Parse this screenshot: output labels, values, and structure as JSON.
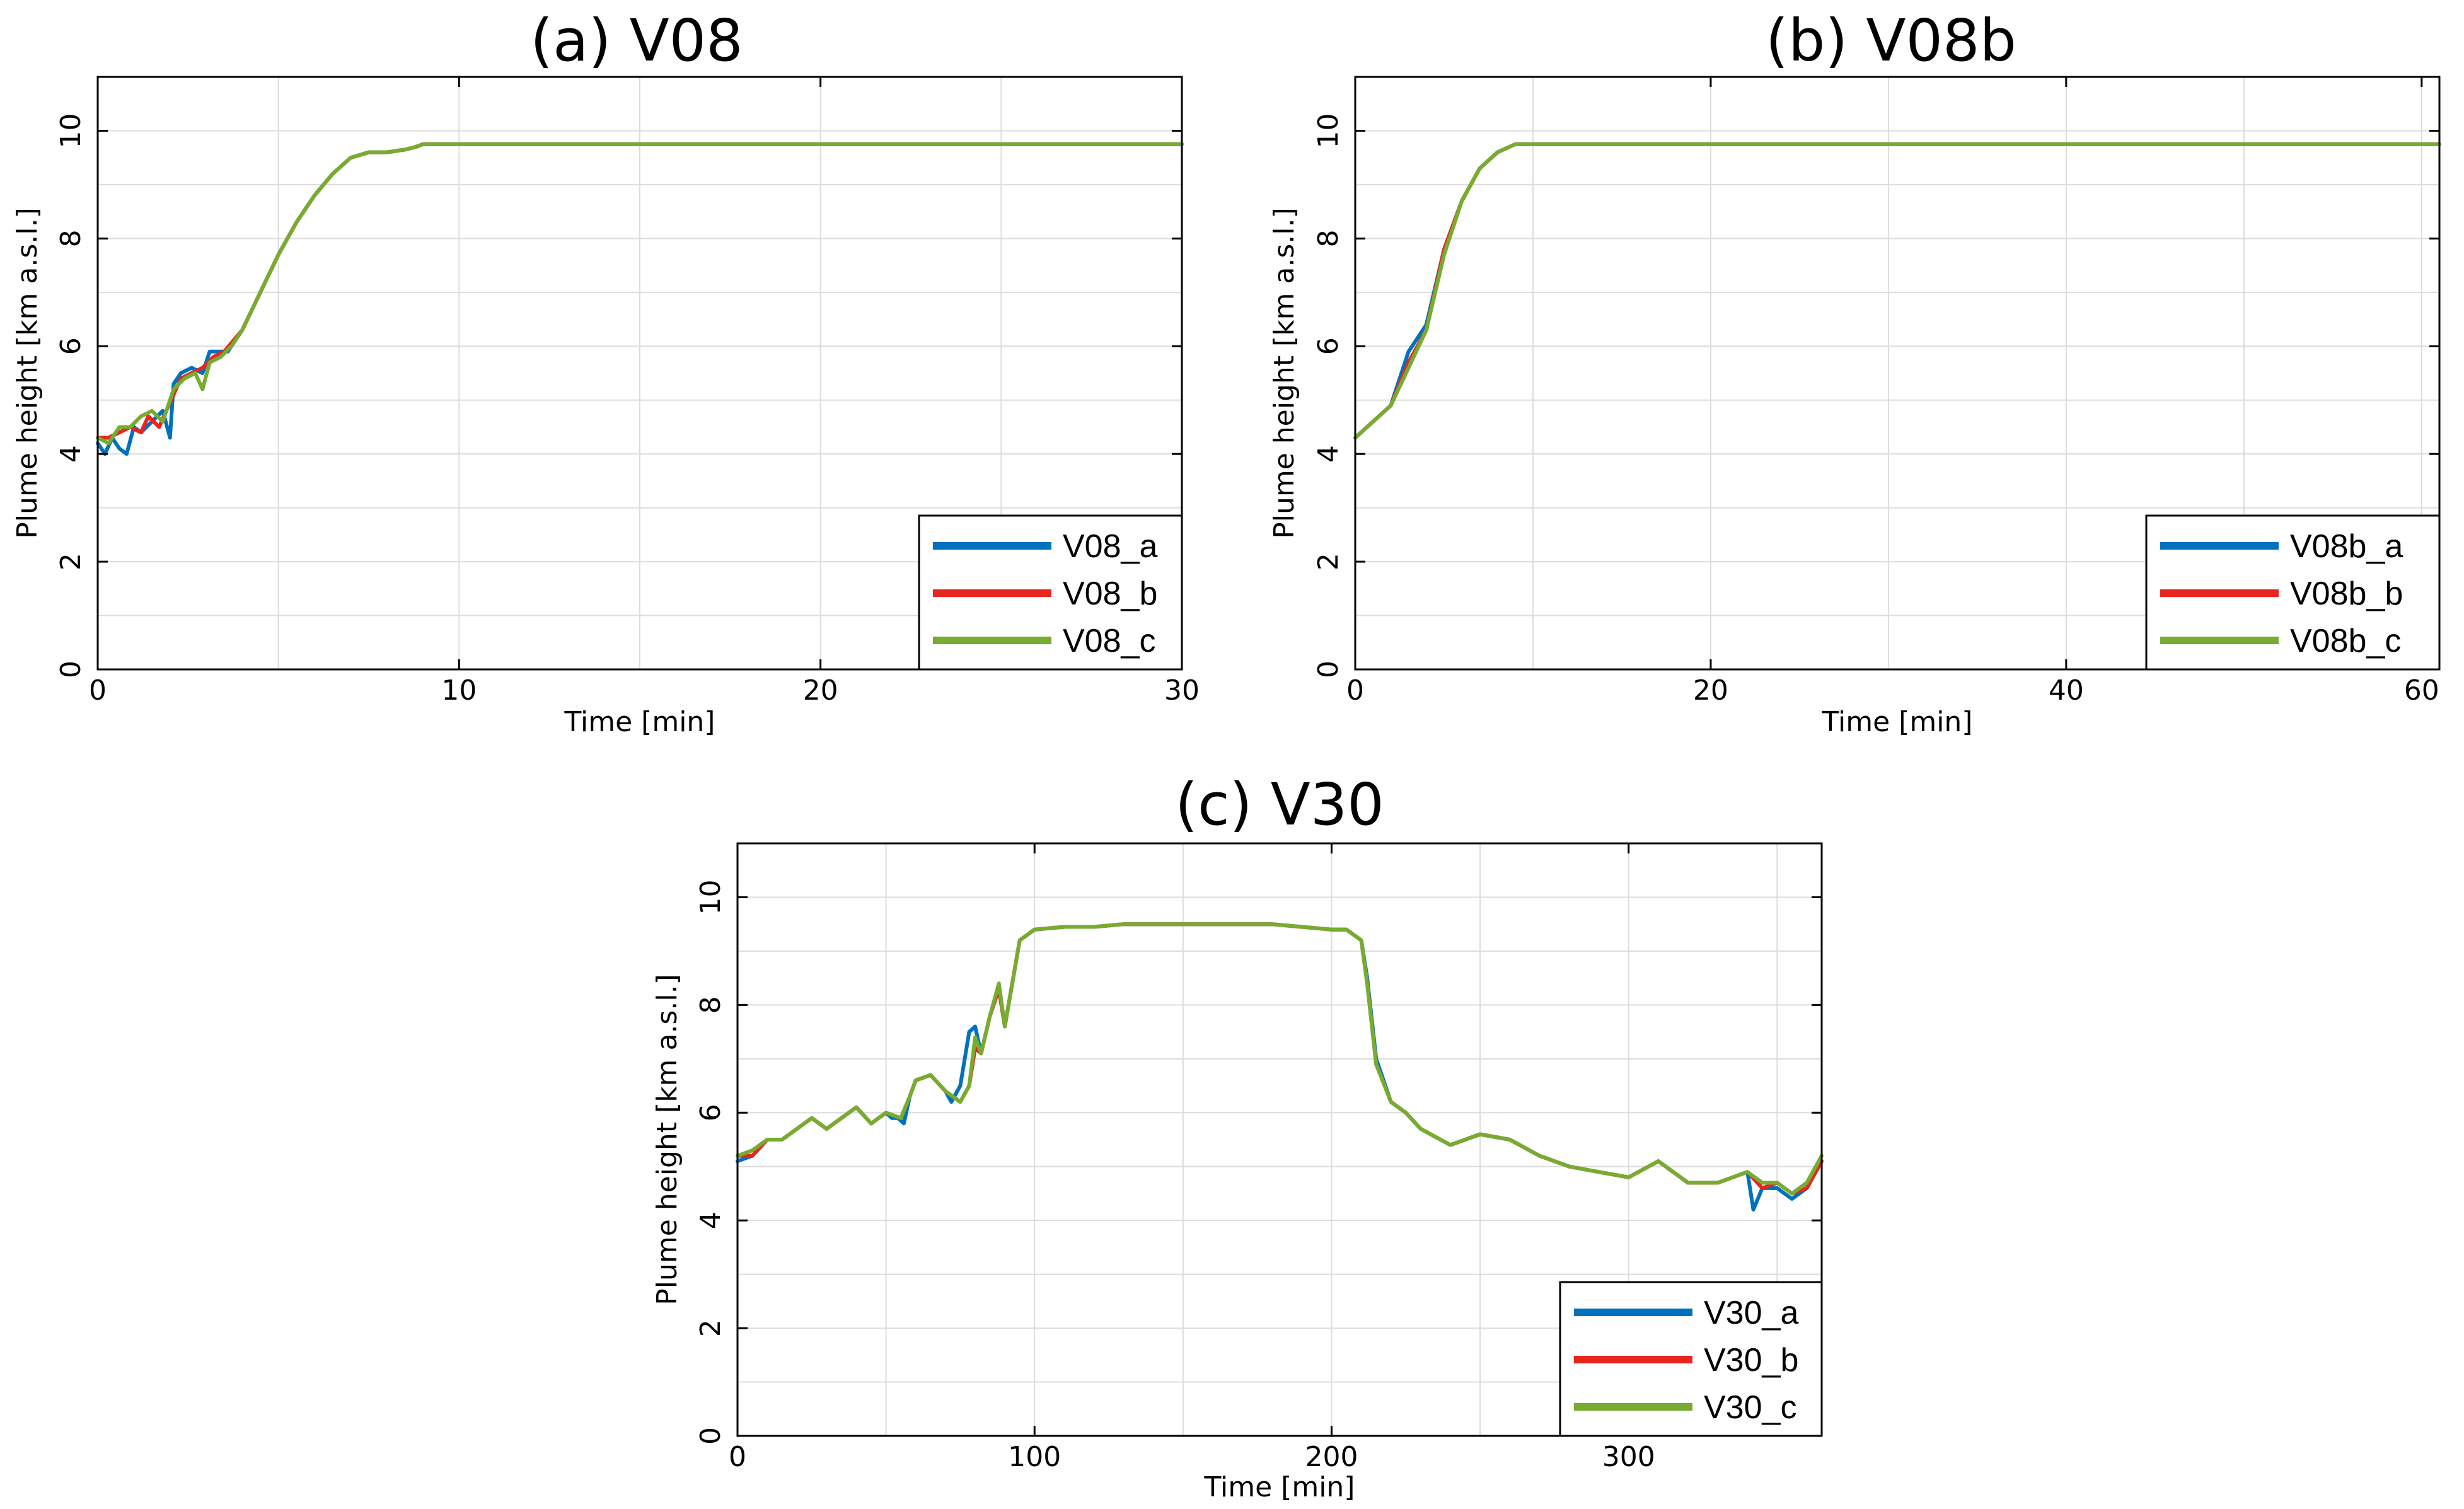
{
  "colors": {
    "a": "#0072BD",
    "b": "#E8251F",
    "c": "#77AC30",
    "orange": "#EDB120"
  },
  "chart_data": [
    {
      "type": "line",
      "title": "(a) V08",
      "xlabel": "Time [min]",
      "ylabel": "Plume height [km a.s.l.]",
      "xlim": [
        0,
        30
      ],
      "ylim": [
        0,
        11
      ],
      "xticks": [
        0,
        10,
        20,
        30
      ],
      "yticks": [
        0,
        2,
        4,
        6,
        8,
        10
      ],
      "legend_position": "bottom-right",
      "series": [
        {
          "name": "V08_a",
          "x": [
            0,
            0.2,
            0.4,
            0.6,
            0.8,
            1.0,
            1.2,
            1.5,
            1.8,
            2.0,
            2.1,
            2.3,
            2.6,
            2.9,
            3.1,
            3.3,
            3.6,
            4,
            4.5,
            5,
            5.5,
            6,
            6.5,
            7,
            7.5,
            8,
            8.5,
            8.8,
            9,
            30
          ],
          "y": [
            4.2,
            4.0,
            4.3,
            4.1,
            4.0,
            4.5,
            4.4,
            4.6,
            4.8,
            4.3,
            5.3,
            5.5,
            5.6,
            5.5,
            5.9,
            5.9,
            5.9,
            6.3,
            7.0,
            7.7,
            8.3,
            8.8,
            9.2,
            9.5,
            9.6,
            9.6,
            9.65,
            9.7,
            9.75,
            9.75
          ]
        },
        {
          "name": "V08_b",
          "x": [
            0,
            0.3,
            0.6,
            0.9,
            1.2,
            1.4,
            1.7,
            1.9,
            2.1,
            2.3,
            2.6,
            2.9,
            3.2,
            3.5,
            4,
            4.5,
            5,
            5.5,
            6,
            6.5,
            7,
            7.5,
            8,
            8.5,
            8.8,
            9,
            30
          ],
          "y": [
            4.3,
            4.3,
            4.4,
            4.5,
            4.4,
            4.7,
            4.5,
            4.8,
            5.1,
            5.4,
            5.5,
            5.6,
            5.8,
            5.9,
            6.3,
            7.0,
            7.7,
            8.3,
            8.8,
            9.2,
            9.5,
            9.6,
            9.6,
            9.65,
            9.7,
            9.75,
            9.75
          ]
        },
        {
          "name": "V08_c",
          "x": [
            0,
            0.3,
            0.6,
            0.9,
            1.2,
            1.5,
            1.8,
            2.1,
            2.4,
            2.7,
            2.9,
            3.1,
            3.4,
            3.7,
            4,
            4.5,
            5,
            5.5,
            6,
            6.5,
            7,
            7.5,
            8,
            8.5,
            8.8,
            9,
            30
          ],
          "y": [
            4.3,
            4.2,
            4.5,
            4.5,
            4.7,
            4.8,
            4.6,
            5.2,
            5.4,
            5.5,
            5.2,
            5.7,
            5.8,
            6.0,
            6.3,
            7.0,
            7.7,
            8.3,
            8.8,
            9.2,
            9.5,
            9.6,
            9.6,
            9.65,
            9.7,
            9.75,
            9.75
          ]
        }
      ]
    },
    {
      "type": "line",
      "title": "(b) V08b",
      "xlabel": "Time [min]",
      "ylabel": "Plume height [km a.s.l.]",
      "xlim": [
        0,
        61
      ],
      "ylim": [
        0,
        11
      ],
      "xticks": [
        0,
        20,
        40,
        60
      ],
      "yticks": [
        0,
        2,
        4,
        6,
        8,
        10
      ],
      "legend_position": "bottom-right",
      "series": [
        {
          "name": "V08b_a",
          "x": [
            0,
            1,
            2,
            3,
            4,
            5,
            6,
            7,
            8,
            9,
            61
          ],
          "y": [
            4.3,
            4.6,
            4.9,
            5.9,
            6.4,
            7.8,
            8.7,
            9.3,
            9.6,
            9.75,
            9.75
          ]
        },
        {
          "name": "V08b_b",
          "x": [
            0,
            1,
            2,
            3,
            4,
            5,
            6,
            7,
            8,
            9,
            61
          ],
          "y": [
            4.3,
            4.6,
            4.9,
            5.7,
            6.3,
            7.8,
            8.7,
            9.3,
            9.6,
            9.75,
            9.75
          ]
        },
        {
          "name": "V08b_c",
          "x": [
            0,
            1,
            2,
            3,
            4,
            5,
            6,
            7,
            8,
            9,
            61
          ],
          "y": [
            4.3,
            4.6,
            4.9,
            5.6,
            6.3,
            7.7,
            8.7,
            9.3,
            9.6,
            9.75,
            9.75
          ]
        }
      ]
    },
    {
      "type": "line",
      "title": "(c) V30",
      "xlabel": "Time [min]",
      "ylabel": "Plume height [km a.s.l.]",
      "xlim": [
        0,
        365
      ],
      "ylim": [
        0,
        11
      ],
      "xticks": [
        0,
        100,
        200,
        300
      ],
      "yticks": [
        0,
        2,
        4,
        6,
        8,
        10
      ],
      "legend_position": "bottom-right",
      "series": [
        {
          "name": "V30_a",
          "x": [
            0,
            5,
            10,
            15,
            20,
            25,
            30,
            35,
            40,
            45,
            50,
            52,
            54,
            56,
            58,
            60,
            65,
            70,
            72,
            75,
            78,
            80,
            82,
            85,
            88,
            90,
            95,
            100,
            110,
            120,
            130,
            140,
            150,
            160,
            170,
            180,
            190,
            200,
            205,
            210,
            212,
            215,
            220,
            225,
            230,
            240,
            250,
            260,
            270,
            280,
            290,
            300,
            310,
            320,
            330,
            340,
            342,
            345,
            350,
            355,
            360,
            365
          ],
          "y": [
            5.1,
            5.2,
            5.5,
            5.5,
            5.7,
            5.9,
            5.7,
            5.9,
            6.1,
            5.8,
            6.0,
            5.9,
            5.9,
            5.8,
            6.3,
            6.6,
            6.7,
            6.4,
            6.2,
            6.5,
            7.5,
            7.6,
            7.1,
            7.8,
            8.3,
            7.6,
            9.2,
            9.4,
            9.45,
            9.45,
            9.5,
            9.5,
            9.5,
            9.5,
            9.5,
            9.5,
            9.45,
            9.4,
            9.4,
            9.2,
            8.5,
            7.0,
            6.2,
            6.0,
            5.7,
            5.4,
            5.6,
            5.5,
            5.2,
            5.0,
            4.9,
            4.8,
            5.1,
            4.7,
            4.7,
            4.9,
            4.2,
            4.6,
            4.6,
            4.4,
            4.6,
            5.1
          ]
        },
        {
          "name": "V30_b",
          "x": [
            0,
            5,
            10,
            15,
            20,
            25,
            30,
            35,
            40,
            45,
            50,
            55,
            58,
            60,
            65,
            70,
            75,
            78,
            80,
            82,
            85,
            88,
            90,
            95,
            100,
            110,
            120,
            130,
            140,
            150,
            160,
            170,
            180,
            190,
            200,
            205,
            210,
            212,
            215,
            220,
            225,
            230,
            240,
            250,
            260,
            270,
            280,
            290,
            300,
            310,
            320,
            330,
            340,
            345,
            350,
            355,
            360,
            365
          ],
          "y": [
            5.2,
            5.2,
            5.5,
            5.5,
            5.7,
            5.9,
            5.7,
            5.9,
            6.1,
            5.8,
            6.0,
            5.9,
            6.3,
            6.6,
            6.7,
            6.4,
            6.2,
            6.5,
            7.2,
            7.1,
            7.8,
            8.3,
            7.6,
            9.2,
            9.4,
            9.45,
            9.45,
            9.5,
            9.5,
            9.5,
            9.5,
            9.5,
            9.5,
            9.45,
            9.4,
            9.4,
            9.2,
            8.4,
            6.9,
            6.2,
            6.0,
            5.7,
            5.4,
            5.6,
            5.5,
            5.2,
            5.0,
            4.9,
            4.8,
            5.1,
            4.7,
            4.7,
            4.9,
            4.6,
            4.7,
            4.5,
            4.6,
            5.1
          ]
        },
        {
          "name": "V30_c",
          "x": [
            0,
            5,
            10,
            15,
            20,
            25,
            30,
            35,
            40,
            45,
            50,
            55,
            58,
            60,
            65,
            70,
            75,
            78,
            80,
            82,
            85,
            88,
            90,
            95,
            100,
            110,
            120,
            130,
            140,
            150,
            160,
            170,
            180,
            190,
            200,
            205,
            210,
            212,
            215,
            220,
            225,
            230,
            240,
            250,
            260,
            270,
            280,
            290,
            300,
            310,
            320,
            330,
            340,
            345,
            350,
            355,
            360,
            365
          ],
          "y": [
            5.2,
            5.3,
            5.5,
            5.5,
            5.7,
            5.9,
            5.7,
            5.9,
            6.1,
            5.8,
            6.0,
            5.9,
            6.3,
            6.6,
            6.7,
            6.4,
            6.2,
            6.5,
            7.4,
            7.1,
            7.8,
            8.4,
            7.6,
            9.2,
            9.4,
            9.45,
            9.45,
            9.5,
            9.5,
            9.5,
            9.5,
            9.5,
            9.5,
            9.45,
            9.4,
            9.4,
            9.2,
            8.4,
            6.9,
            6.2,
            6.0,
            5.7,
            5.4,
            5.6,
            5.5,
            5.2,
            5.0,
            4.9,
            4.8,
            5.1,
            4.7,
            4.7,
            4.9,
            4.7,
            4.7,
            4.5,
            4.7,
            5.2
          ]
        }
      ]
    }
  ]
}
